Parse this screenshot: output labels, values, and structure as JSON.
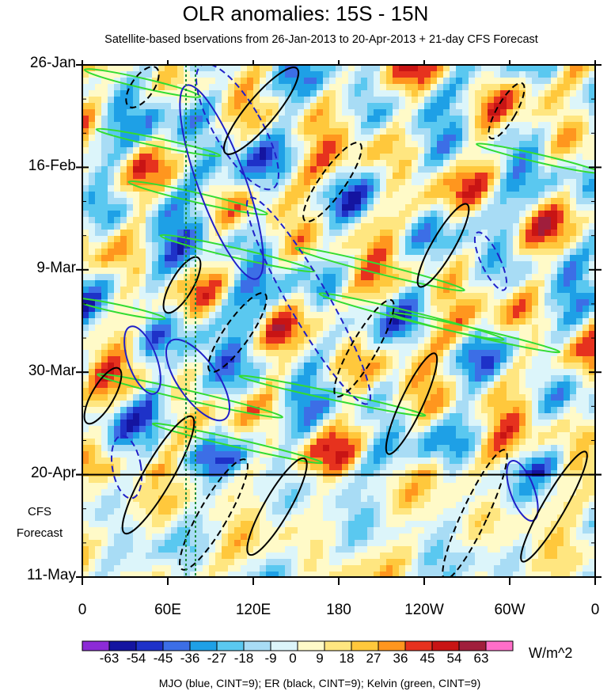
{
  "chart_data": {
    "type": "heatmap",
    "title": "OLR anomalies: 15S - 15N",
    "subtitle": "Satellite-based bservations from 26-Jan-2013 to 20-Apr-2013 + 21-day CFS Forecast",
    "x_ticks": [
      "0",
      "60E",
      "120E",
      "180",
      "120W",
      "60W",
      "0"
    ],
    "y_ticks": [
      "26-Jan",
      "16-Feb",
      "9-Mar",
      "30-Mar",
      "20-Apr",
      "11-May"
    ],
    "forecast_label_1": "CFS",
    "forecast_label_2": "Forecast",
    "forecast_start": "20-Apr",
    "colorbar": {
      "labels": [
        "-63",
        "-54",
        "-45",
        "-36",
        "-27",
        "-18",
        "-9",
        "0",
        "9",
        "18",
        "27",
        "36",
        "45",
        "54",
        "63"
      ],
      "colors": [
        "#8c2bd6",
        "#1414a0",
        "#1e32c8",
        "#3c6ee6",
        "#1ea0e6",
        "#5ac8f0",
        "#a8dcf5",
        "#dcf5fa",
        "#fffac8",
        "#ffe680",
        "#ffc83c",
        "#ff961e",
        "#e6321e",
        "#c81414",
        "#a01e3c",
        "#ff6ec8"
      ],
      "units": "W/m^2"
    },
    "legend_text": "MJO (blue, CINT=9); ER (black, CINT=9); Kelvin (green, CINT=9)",
    "colors": {
      "mjo": "#2020c8",
      "er": "#000000",
      "kelvin": "#32dc32",
      "reference_line": "#1a8a3a"
    }
  }
}
